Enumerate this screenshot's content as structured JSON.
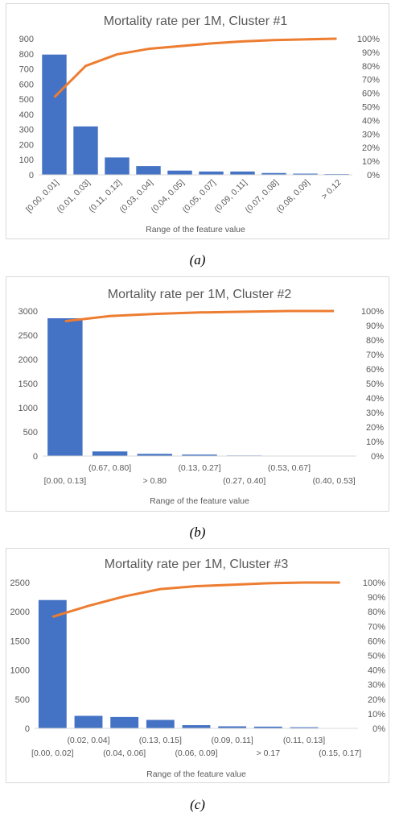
{
  "colors": {
    "bar": "#4472c4",
    "line": "#ed7d31",
    "axis_text": "#595959",
    "title_text": "#595959",
    "axis_line": "#d9d9d9"
  },
  "captions": [
    "(a)",
    "(b)",
    "(c)"
  ],
  "chart_data": [
    {
      "type": "bar",
      "title": "Mortality rate per 1M, Cluster #1",
      "xlabel": "Range of the feature value",
      "ylabel": "",
      "ylim": [
        0,
        900
      ],
      "yticks": [
        "0",
        "100",
        "200",
        "300",
        "400",
        "500",
        "600",
        "700",
        "800",
        "900"
      ],
      "y2lim": [
        0,
        100
      ],
      "y2ticks": [
        "0%",
        "10%",
        "20%",
        "30%",
        "40%",
        "50%",
        "60%",
        "70%",
        "80%",
        "90%",
        "100%"
      ],
      "tick_style": "rotated",
      "categories": [
        "[0.00, 0.01]",
        "(0.01, 0.03]",
        "(0.11, 0.12]",
        "(0.03, 0.04]",
        "(0.04, 0.05]",
        "(0.05, 0.07]",
        "(0.09, 0.11]",
        "(0.07, 0.08]",
        "(0.08, 0.09]",
        "> 0.12"
      ],
      "series": [
        {
          "type": "bar",
          "axis": "left",
          "values": [
            795,
            320,
            115,
            58,
            28,
            22,
            22,
            12,
            8,
            5
          ]
        },
        {
          "type": "line",
          "axis": "right",
          "values": [
            57,
            80,
            88.5,
            92.5,
            94.5,
            96.5,
            98,
            99,
            99.5,
            100
          ]
        }
      ]
    },
    {
      "type": "bar",
      "title": "Mortality rate per 1M, Cluster #2",
      "xlabel": "Range of the feature value",
      "ylabel": "",
      "ylim": [
        0,
        3000
      ],
      "yticks": [
        "0",
        "500",
        "1000",
        "1500",
        "2000",
        "2500",
        "3000"
      ],
      "y2lim": [
        0,
        100
      ],
      "y2ticks": [
        "0%",
        "10%",
        "20%",
        "30%",
        "40%",
        "50%",
        "60%",
        "70%",
        "80%",
        "90%",
        "100%"
      ],
      "tick_style": "staggered",
      "categories": [
        "[0.00, 0.13]",
        "(0.67, 0.80]",
        "> 0.80",
        "(0.13, 0.27]",
        "(0.27, 0.40]",
        "(0.53, 0.67]",
        "(0.40, 0.53]"
      ],
      "series": [
        {
          "type": "bar",
          "axis": "left",
          "values": [
            2850,
            95,
            45,
            30,
            12,
            8,
            3
          ]
        },
        {
          "type": "line",
          "axis": "right",
          "values": [
            93,
            96.5,
            98,
            99,
            99.5,
            100,
            100
          ]
        }
      ]
    },
    {
      "type": "bar",
      "title": "Mortality rate per 1M, Cluster #3",
      "xlabel": "Range of the feature value",
      "ylabel": "",
      "ylim": [
        0,
        2500
      ],
      "yticks": [
        "0",
        "500",
        "1000",
        "1500",
        "2000",
        "2500"
      ],
      "y2lim": [
        0,
        100
      ],
      "y2ticks": [
        "0%",
        "10%",
        "20%",
        "30%",
        "40%",
        "50%",
        "60%",
        "70%",
        "80%",
        "90%",
        "100%"
      ],
      "tick_style": "staggered",
      "categories": [
        "[0.00, 0.02]",
        "(0.02, 0.04]",
        "(0.04, 0.06]",
        "(0.13, 0.15]",
        "(0.06, 0.09]",
        "(0.09, 0.11]",
        "> 0.17",
        "(0.11, 0.13]",
        "(0.15, 0.17]"
      ],
      "series": [
        {
          "type": "bar",
          "axis": "left",
          "values": [
            2200,
            215,
            195,
            145,
            55,
            35,
            30,
            20,
            5
          ]
        },
        {
          "type": "line",
          "axis": "right",
          "values": [
            76.5,
            84,
            90.5,
            95.5,
            97.5,
            98.5,
            99.5,
            100,
            100
          ]
        }
      ]
    }
  ]
}
